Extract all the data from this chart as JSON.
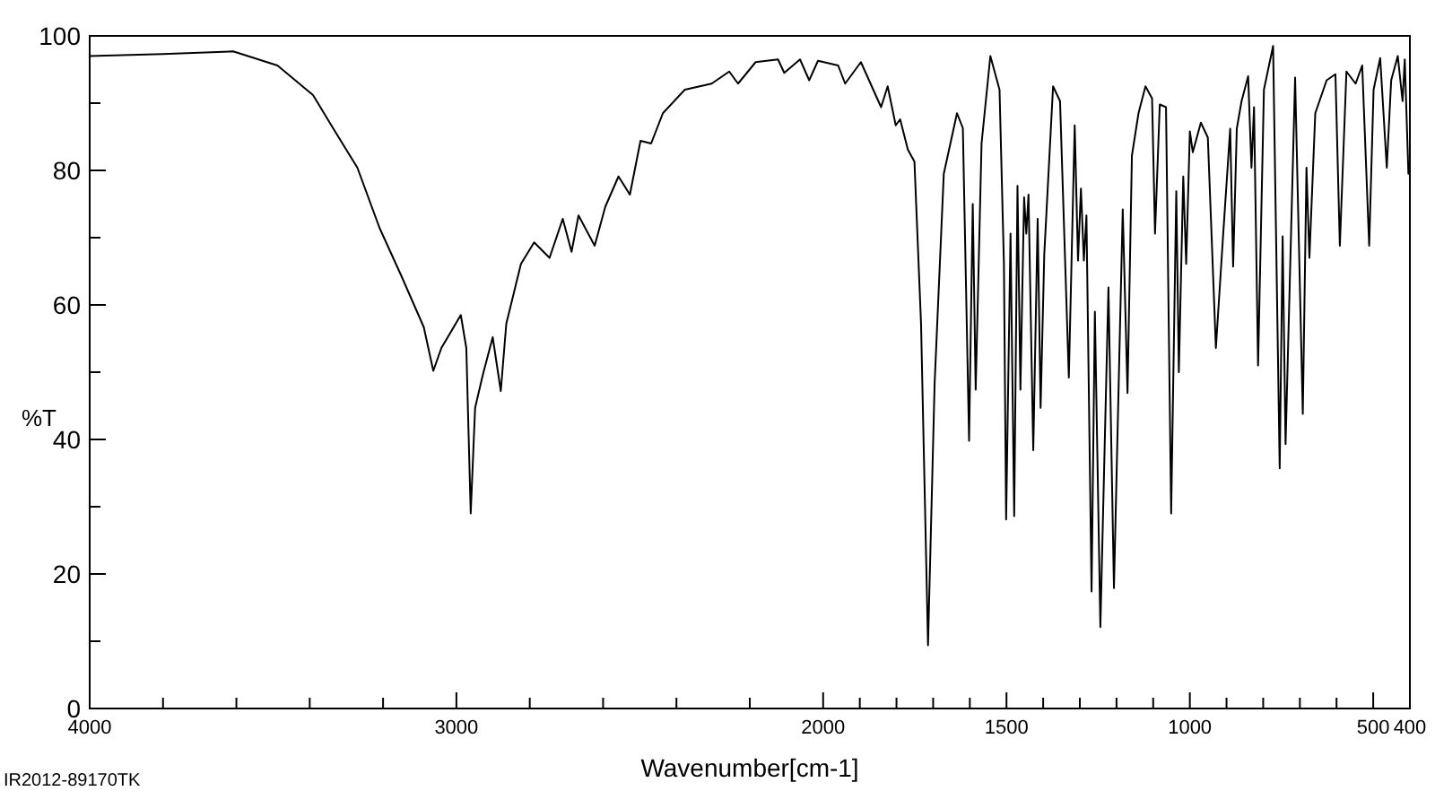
{
  "chart_data": {
    "type": "line",
    "xlabel": "Wavenumber[cm-1]",
    "ylabel": "%T",
    "annotations": [
      "IR2012-89170TK"
    ],
    "x": [
      4000,
      3800,
      3609,
      3488,
      3391,
      3331,
      3270,
      3210,
      3150,
      3089,
      3063,
      3041,
      2988,
      2973,
      2961,
      2949,
      2928,
      2901,
      2879,
      2864,
      2824,
      2788,
      2746,
      2710,
      2686,
      2667,
      2623,
      2594,
      2558,
      2527,
      2498,
      2469,
      2437,
      2377,
      2304,
      2256,
      2232,
      2184,
      2123,
      2106,
      2063,
      2038,
      2014,
      1959,
      1940,
      1897,
      1842,
      1824,
      1802,
      1790,
      1769,
      1751,
      1733,
      1714,
      1696,
      1671,
      1635,
      1619,
      1602,
      1592,
      1584,
      1568,
      1544,
      1519,
      1507,
      1501,
      1489,
      1479,
      1470,
      1462,
      1452,
      1446,
      1440,
      1427,
      1415,
      1407,
      1397,
      1373,
      1354,
      1330,
      1314,
      1305,
      1297,
      1289,
      1282,
      1268,
      1259,
      1244,
      1222,
      1207,
      1183,
      1170,
      1158,
      1140,
      1121,
      1103,
      1095,
      1082,
      1065,
      1051,
      1037,
      1030,
      1018,
      1010,
      1000,
      992,
      970,
      951,
      929,
      909,
      890,
      882,
      872,
      859,
      841,
      832,
      825,
      814,
      798,
      773,
      755,
      747,
      739,
      713,
      692,
      682,
      674,
      658,
      627,
      603,
      591,
      573,
      548,
      530,
      511,
      499,
      481,
      463,
      451,
      433,
      420,
      414,
      404,
      400
    ],
    "series": [
      {
        "color": "#000000",
        "values": [
          97,
          97.3,
          97.7,
          95.6,
          91.2,
          85.8,
          80.4,
          71.5,
          64.3,
          56.7,
          50.2,
          53.6,
          58.5,
          53.6,
          29,
          44.7,
          49.6,
          55.2,
          47.2,
          57.2,
          66.1,
          69.3,
          67,
          72.8,
          67.9,
          73.3,
          68.8,
          74.6,
          79.1,
          76.4,
          84.4,
          84,
          88.5,
          92,
          92.9,
          94.7,
          92.9,
          96.1,
          96.5,
          94.5,
          96.5,
          93.4,
          96.3,
          95.6,
          92.9,
          96.1,
          89.4,
          92.5,
          86.7,
          87.6,
          83.1,
          81.3,
          57.2,
          9.4,
          48.3,
          79.5,
          88.5,
          86.3,
          39.8,
          75,
          47.4,
          84,
          97,
          92,
          66.1,
          28.1,
          70.6,
          28.6,
          77.7,
          47.4,
          76,
          70.6,
          76.4,
          38.4,
          72.8,
          44.7,
          67.5,
          92.5,
          90.3,
          49.2,
          86.7,
          66.6,
          77.3,
          66.6,
          73.3,
          17.4,
          59,
          12.1,
          62.6,
          17.9,
          74.2,
          46.9,
          82.2,
          88.5,
          92.5,
          90.7,
          70.6,
          89.8,
          89.4,
          29,
          76.9,
          50,
          79.1,
          66.1,
          85.8,
          82.7,
          87.1,
          84.9,
          53.6,
          70.6,
          86.2,
          65.7,
          86.2,
          90.3,
          94,
          80.4,
          89.4,
          51,
          92,
          98.5,
          35.7,
          70.2,
          39.3,
          93.8,
          43.8,
          80.4,
          67,
          88.5,
          93.4,
          94.3,
          68.8,
          94.7,
          92.9,
          95.6,
          68.8,
          92,
          96.7,
          80.4,
          93.4,
          97,
          90.3,
          96.5,
          79.5,
          80
        ]
      }
    ],
    "xlim": [
      4000,
      400
    ],
    "xticks": [
      4000,
      {
        "value": 3800,
        "label": null
      },
      {
        "value": 3600,
        "label": null
      },
      {
        "value": 3400,
        "label": null
      },
      {
        "value": 3200,
        "label": null
      },
      3000,
      {
        "value": 2800,
        "label": null
      },
      {
        "value": 2600,
        "label": null
      },
      {
        "value": 2400,
        "label": null
      },
      {
        "value": 2200,
        "label": null
      },
      2000,
      {
        "value": 1900,
        "label": null
      },
      {
        "value": 1800,
        "label": null
      },
      {
        "value": 1700,
        "label": null
      },
      {
        "value": 1600,
        "label": null
      },
      1500,
      {
        "value": 1400,
        "label": null
      },
      {
        "value": 1300,
        "label": null
      },
      {
        "value": 1200,
        "label": null
      },
      {
        "value": 1100,
        "label": null
      },
      1000,
      {
        "value": 900,
        "label": null
      },
      {
        "value": 800,
        "label": null
      },
      {
        "value": 700,
        "label": null
      },
      {
        "value": 600,
        "label": null
      },
      500,
      400
    ],
    "ylim": [
      0,
      100
    ],
    "yticks": [
      0,
      {
        "value": 10,
        "label": null
      },
      20,
      {
        "value": 30,
        "label": null
      },
      40,
      {
        "value": 50,
        "label": null
      },
      60,
      {
        "value": 70,
        "label": null
      },
      80,
      {
        "value": 90,
        "label": null
      },
      100
    ],
    "grid": false,
    "marker": "none",
    "line_style": "solid"
  }
}
